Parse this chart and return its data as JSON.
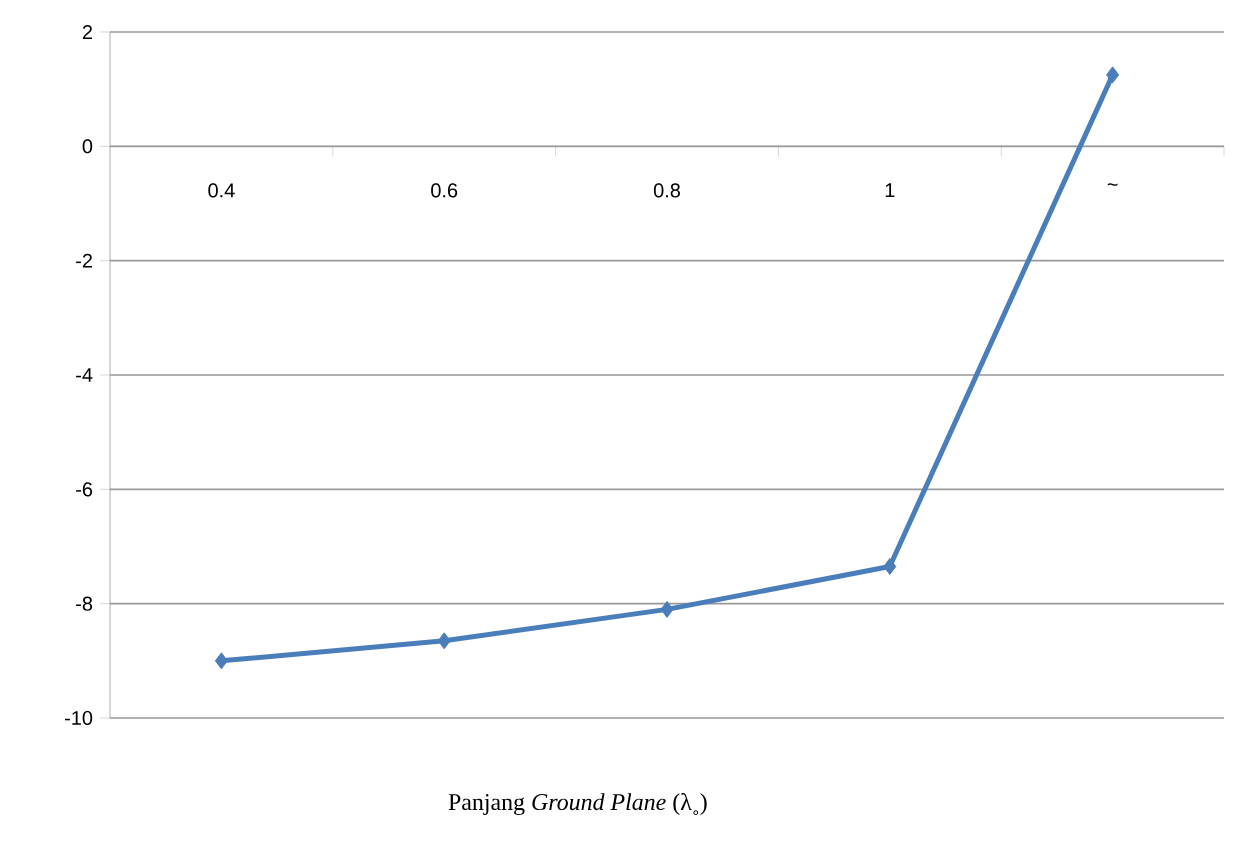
{
  "chart_data": {
    "type": "line",
    "xlabel": "Panjang *Ground Plane* (λ˳)",
    "categories": [
      "0.4",
      "0.6",
      "0.8",
      "1",
      "~"
    ],
    "values": [
      -9.0,
      -8.65,
      -8.1,
      -7.35,
      1.25
    ],
    "color": "#4a7ebb",
    "marker": "diamond",
    "grid": "y",
    "ylim": [
      -10,
      2
    ],
    "yticks": [
      -10,
      -8,
      -6,
      -4,
      -2,
      0,
      2
    ]
  }
}
